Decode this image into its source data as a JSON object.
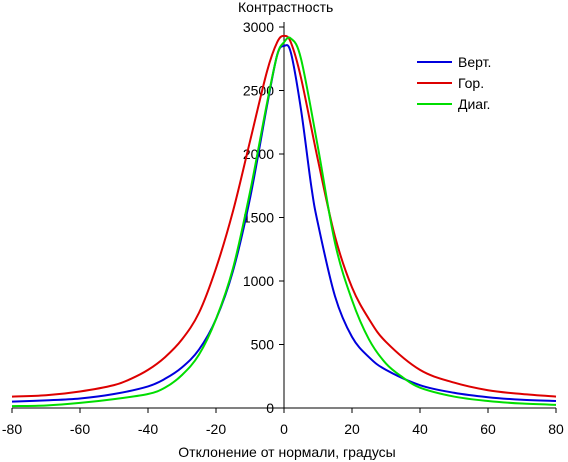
{
  "chart_data": {
    "type": "line",
    "title": "",
    "xlabel": "Отклонение от нормали, градусы",
    "ylabel": "Контрастность",
    "xlim": [
      -80,
      80
    ],
    "ylim": [
      0,
      3000
    ],
    "x_ticks": [
      -80,
      -60,
      -40,
      -20,
      0,
      20,
      40,
      60,
      80
    ],
    "y_ticks": [
      0,
      500,
      1000,
      1500,
      2000,
      2500,
      3000
    ],
    "grid": false,
    "legend_position": "top-right",
    "series": [
      {
        "name": "Верт.",
        "color": "#0000dd",
        "points": [
          [
            -80,
            50
          ],
          [
            -70,
            60
          ],
          [
            -60,
            75
          ],
          [
            -50,
            110
          ],
          [
            -40,
            170
          ],
          [
            -35,
            230
          ],
          [
            -30,
            320
          ],
          [
            -25,
            460
          ],
          [
            -20,
            700
          ],
          [
            -15,
            1080
          ],
          [
            -10,
            1650
          ],
          [
            -5,
            2380
          ],
          [
            -2,
            2780
          ],
          [
            0,
            2850
          ],
          [
            2,
            2800
          ],
          [
            5,
            2350
          ],
          [
            8,
            1750
          ],
          [
            10,
            1450
          ],
          [
            15,
            880
          ],
          [
            20,
            560
          ],
          [
            25,
            400
          ],
          [
            30,
            300
          ],
          [
            40,
            180
          ],
          [
            50,
            120
          ],
          [
            60,
            85
          ],
          [
            70,
            65
          ],
          [
            80,
            55
          ]
        ]
      },
      {
        "name": "Гор.",
        "color": "#dd0000",
        "points": [
          [
            -80,
            90
          ],
          [
            -70,
            100
          ],
          [
            -60,
            130
          ],
          [
            -50,
            180
          ],
          [
            -45,
            230
          ],
          [
            -40,
            300
          ],
          [
            -35,
            400
          ],
          [
            -30,
            540
          ],
          [
            -25,
            750
          ],
          [
            -20,
            1100
          ],
          [
            -15,
            1550
          ],
          [
            -10,
            2100
          ],
          [
            -5,
            2650
          ],
          [
            -2,
            2880
          ],
          [
            0,
            2930
          ],
          [
            2,
            2880
          ],
          [
            5,
            2600
          ],
          [
            10,
            1950
          ],
          [
            15,
            1350
          ],
          [
            20,
            950
          ],
          [
            25,
            700
          ],
          [
            30,
            520
          ],
          [
            40,
            300
          ],
          [
            50,
            200
          ],
          [
            60,
            140
          ],
          [
            70,
            110
          ],
          [
            80,
            90
          ]
        ]
      },
      {
        "name": "Диаг.",
        "color": "#00dd00",
        "points": [
          [
            -80,
            15
          ],
          [
            -70,
            20
          ],
          [
            -60,
            40
          ],
          [
            -50,
            70
          ],
          [
            -40,
            110
          ],
          [
            -35,
            160
          ],
          [
            -30,
            260
          ],
          [
            -25,
            420
          ],
          [
            -20,
            700
          ],
          [
            -15,
            1100
          ],
          [
            -10,
            1700
          ],
          [
            -5,
            2400
          ],
          [
            -2,
            2780
          ],
          [
            0,
            2880
          ],
          [
            2,
            2910
          ],
          [
            5,
            2750
          ],
          [
            10,
            2050
          ],
          [
            15,
            1300
          ],
          [
            20,
            850
          ],
          [
            25,
            540
          ],
          [
            30,
            350
          ],
          [
            35,
            240
          ],
          [
            40,
            160
          ],
          [
            50,
            90
          ],
          [
            60,
            55
          ],
          [
            70,
            35
          ],
          [
            80,
            25
          ]
        ]
      }
    ]
  }
}
